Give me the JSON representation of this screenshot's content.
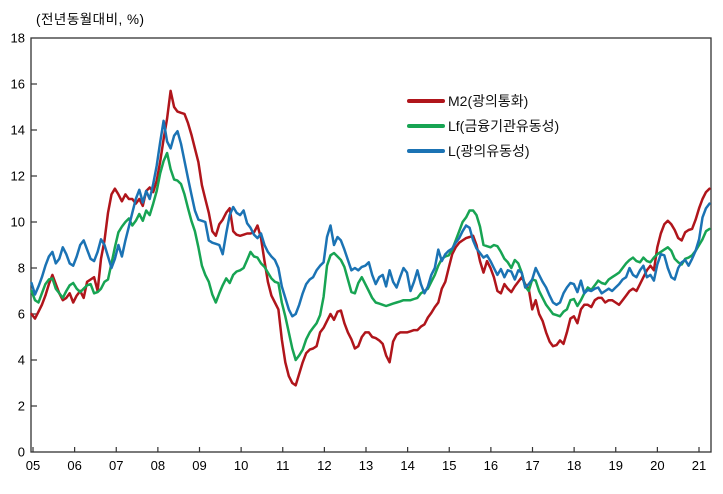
{
  "title": "(전년동월대비, %)",
  "axis_color": "#333333",
  "legend": {
    "items": [
      {
        "label": "M2(광의통화)",
        "color": "#b0151b"
      },
      {
        "label": "Lf(금융기관유동성)",
        "color": "#17a453"
      },
      {
        "label": "L(광의유동성)",
        "color": "#1b73b4"
      }
    ]
  },
  "chart_data": {
    "type": "line",
    "title": "(전년동월대비, %)",
    "x_axis": {
      "start_year": 2005,
      "start_month": 1,
      "frequency": "monthly",
      "tick_labels": [
        "05",
        "06",
        "07",
        "08",
        "09",
        "10",
        "11",
        "12",
        "13",
        "14",
        "15",
        "16",
        "17",
        "18",
        "19",
        "20",
        "21"
      ]
    },
    "ylim": [
      0,
      18
    ],
    "y_ticks": [
      0,
      2,
      4,
      6,
      8,
      10,
      12,
      14,
      16,
      18
    ],
    "grid": false,
    "legend_position": "inside-top-right",
    "series": [
      {
        "name": "M2(광의통화)",
        "color": "#b0151b",
        "values": [
          6.0,
          5.8,
          6.1,
          6.4,
          6.8,
          7.3,
          7.7,
          7.3,
          6.9,
          6.6,
          6.7,
          6.9,
          6.5,
          6.8,
          7.0,
          6.7,
          7.4,
          7.5,
          7.6,
          7.0,
          8.4,
          9.2,
          10.4,
          11.2,
          11.45,
          11.2,
          10.9,
          11.2,
          11.0,
          11.0,
          10.8,
          11.0,
          10.7,
          11.35,
          11.5,
          11.3,
          11.8,
          12.6,
          13.6,
          14.5,
          15.7,
          15.0,
          14.8,
          14.75,
          14.7,
          14.3,
          13.8,
          13.2,
          12.6,
          11.6,
          11.0,
          10.4,
          9.6,
          9.4,
          9.9,
          10.1,
          10.4,
          10.6,
          9.6,
          9.45,
          9.4,
          9.45,
          9.5,
          9.5,
          9.55,
          9.85,
          9.3,
          8.3,
          7.4,
          6.8,
          6.5,
          6.2,
          4.9,
          3.9,
          3.3,
          3.0,
          2.9,
          3.4,
          3.9,
          4.3,
          4.45,
          4.5,
          4.6,
          5.2,
          5.4,
          5.7,
          6.0,
          5.75,
          6.1,
          6.15,
          5.6,
          5.2,
          4.9,
          4.5,
          4.6,
          5.0,
          5.2,
          5.2,
          5.0,
          4.95,
          4.85,
          4.7,
          4.2,
          3.9,
          4.8,
          5.1,
          5.2,
          5.2,
          5.2,
          5.25,
          5.3,
          5.3,
          5.45,
          5.55,
          5.85,
          6.05,
          6.3,
          6.5,
          7.1,
          7.4,
          8.0,
          8.6,
          8.9,
          9.1,
          9.2,
          9.3,
          9.35,
          9.4,
          9.0,
          8.3,
          7.8,
          8.3,
          8.0,
          7.6,
          7.0,
          6.9,
          7.3,
          7.1,
          6.95,
          7.2,
          7.4,
          7.6,
          7.3,
          7.1,
          6.2,
          6.6,
          6.0,
          5.7,
          5.2,
          4.8,
          4.6,
          4.65,
          4.85,
          4.7,
          5.2,
          5.8,
          5.9,
          5.6,
          6.2,
          6.4,
          6.4,
          6.3,
          6.6,
          6.7,
          6.7,
          6.5,
          6.6,
          6.6,
          6.5,
          6.4,
          6.6,
          6.8,
          7.0,
          7.1,
          7.0,
          7.3,
          7.6,
          7.9,
          8.1,
          7.9,
          8.9,
          9.5,
          9.9,
          10.05,
          9.9,
          9.65,
          9.3,
          9.2,
          9.55,
          9.65,
          9.7,
          10.1,
          10.6,
          11.0,
          11.3,
          11.45
        ]
      },
      {
        "name": "Lf(금융기관유동성)",
        "color": "#17a453",
        "values": [
          7.0,
          6.6,
          6.5,
          6.9,
          7.3,
          7.5,
          7.55,
          7.1,
          6.9,
          6.7,
          7.0,
          7.25,
          7.35,
          7.1,
          6.95,
          7.1,
          7.25,
          7.3,
          6.9,
          6.95,
          7.1,
          7.4,
          7.5,
          8.2,
          8.9,
          9.55,
          9.8,
          10.0,
          10.15,
          9.85,
          10.05,
          10.35,
          10.05,
          10.5,
          10.3,
          10.8,
          11.35,
          12.1,
          12.65,
          13.0,
          12.3,
          11.85,
          11.8,
          11.65,
          11.2,
          10.6,
          10.05,
          9.6,
          8.9,
          8.1,
          7.7,
          7.4,
          6.85,
          6.5,
          6.9,
          7.25,
          7.55,
          7.35,
          7.7,
          7.85,
          7.9,
          8.0,
          8.35,
          8.7,
          8.5,
          8.45,
          8.2,
          8.05,
          7.8,
          7.55,
          7.4,
          7.35,
          6.5,
          5.9,
          5.2,
          4.5,
          4.0,
          4.2,
          4.45,
          4.9,
          5.2,
          5.4,
          5.6,
          5.95,
          6.75,
          8.1,
          8.55,
          8.65,
          8.5,
          8.35,
          8.05,
          7.5,
          6.95,
          6.9,
          7.35,
          7.6,
          7.3,
          7.0,
          6.7,
          6.5,
          6.45,
          6.4,
          6.35,
          6.4,
          6.45,
          6.5,
          6.55,
          6.6,
          6.6,
          6.6,
          6.65,
          6.7,
          6.9,
          7.0,
          7.1,
          7.4,
          7.7,
          8.1,
          8.4,
          8.5,
          8.55,
          8.8,
          9.2,
          9.6,
          10.0,
          10.2,
          10.5,
          10.5,
          10.3,
          9.8,
          9.0,
          8.95,
          8.9,
          9.0,
          8.95,
          8.7,
          8.4,
          8.25,
          8.0,
          8.35,
          8.2,
          7.8,
          7.2,
          7.0,
          7.5,
          7.45,
          7.0,
          6.7,
          6.4,
          6.2,
          6.0,
          5.95,
          5.9,
          6.1,
          6.2,
          6.6,
          6.65,
          6.35,
          6.6,
          6.9,
          7.15,
          7.05,
          7.25,
          7.45,
          7.35,
          7.3,
          7.5,
          7.6,
          7.7,
          7.8,
          8.0,
          8.2,
          8.35,
          8.45,
          8.3,
          8.25,
          8.45,
          8.3,
          8.25,
          8.45,
          8.6,
          8.7,
          8.8,
          8.9,
          8.75,
          8.4,
          8.25,
          8.15,
          8.4,
          8.45,
          8.55,
          8.75,
          9.0,
          9.25,
          9.6,
          9.7
        ]
      },
      {
        "name": "L(광의유동성)",
        "color": "#1b73b4",
        "values": [
          7.35,
          6.85,
          7.2,
          7.6,
          8.1,
          8.5,
          8.7,
          8.2,
          8.4,
          8.9,
          8.6,
          8.2,
          8.1,
          8.5,
          9.0,
          9.2,
          8.8,
          8.4,
          8.3,
          8.7,
          9.25,
          9.0,
          8.5,
          8.0,
          8.4,
          9.0,
          8.5,
          9.2,
          9.8,
          10.4,
          11.0,
          11.4,
          10.85,
          11.35,
          11.0,
          11.65,
          12.45,
          13.45,
          14.4,
          13.5,
          13.2,
          13.75,
          13.95,
          13.4,
          12.65,
          11.9,
          11.2,
          10.5,
          10.1,
          10.05,
          10.0,
          9.2,
          9.1,
          9.05,
          9.0,
          8.6,
          9.5,
          10.3,
          10.65,
          10.4,
          10.3,
          10.5,
          9.95,
          9.75,
          9.45,
          9.3,
          9.5,
          9.0,
          8.7,
          8.5,
          8.35,
          8.0,
          7.2,
          6.7,
          6.2,
          5.9,
          6.0,
          6.4,
          6.9,
          7.3,
          7.5,
          7.6,
          7.9,
          8.1,
          8.25,
          9.35,
          9.85,
          9.0,
          9.35,
          9.2,
          8.8,
          8.35,
          7.9,
          8.0,
          7.9,
          8.05,
          8.1,
          8.25,
          7.7,
          7.3,
          7.6,
          7.7,
          7.2,
          7.9,
          7.4,
          7.15,
          7.6,
          8.0,
          7.8,
          7.0,
          7.4,
          7.9,
          7.3,
          6.9,
          7.2,
          7.7,
          8.0,
          8.8,
          8.3,
          8.6,
          8.75,
          8.85,
          9.1,
          9.3,
          9.6,
          9.85,
          9.75,
          9.2,
          8.85,
          8.65,
          8.45,
          8.55,
          8.3,
          8.0,
          7.7,
          7.95,
          7.6,
          7.9,
          7.85,
          7.5,
          7.9,
          7.8,
          7.15,
          7.3,
          7.5,
          8.0,
          7.7,
          7.4,
          7.15,
          6.8,
          6.5,
          6.4,
          6.5,
          6.9,
          7.15,
          7.35,
          7.3,
          6.95,
          7.45,
          6.9,
          7.05,
          7.0,
          7.1,
          7.15,
          6.9,
          7.0,
          7.1,
          7.0,
          7.15,
          7.3,
          7.5,
          7.6,
          8.0,
          7.7,
          7.6,
          7.9,
          8.1,
          7.6,
          7.7,
          7.45,
          8.15,
          8.6,
          8.55,
          8.0,
          7.6,
          7.5,
          8.0,
          8.25,
          8.35,
          8.1,
          8.4,
          8.75,
          9.25,
          10.2,
          10.6,
          10.8
        ]
      }
    ]
  }
}
